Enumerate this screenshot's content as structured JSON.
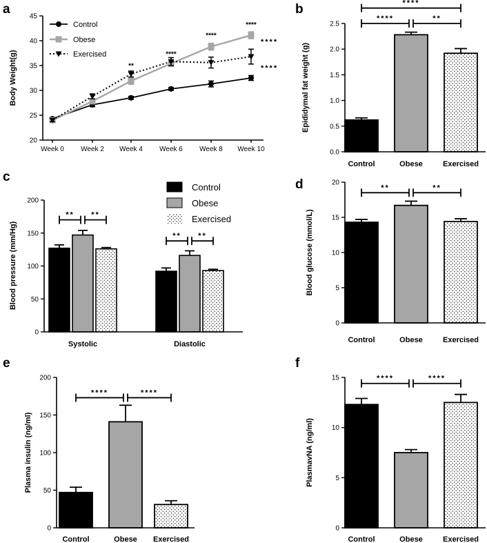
{
  "colors": {
    "control": "#000000",
    "obese": "#a6a6a6",
    "exercised": "#ffffff",
    "axis": "#000000"
  },
  "chart_data": [
    {
      "id": "a",
      "panel_label": "a",
      "type": "line",
      "ylabel": "Body Weight(g)",
      "ylim": [
        20,
        45
      ],
      "yticks": [
        20,
        25,
        30,
        35,
        40,
        45
      ],
      "x": [
        "Week 0",
        "Week 2",
        "Week 4",
        "Week 6",
        "Week 8",
        "Week 10"
      ],
      "series": [
        {
          "name": "Control",
          "key": "control",
          "values": [
            24.3,
            27.1,
            28.5,
            30.3,
            31.3,
            32.5
          ],
          "err": [
            0.3,
            0.4,
            0.3,
            0.3,
            0.6,
            0.5
          ]
        },
        {
          "name": "Obese",
          "key": "obese",
          "values": [
            24.0,
            27.8,
            31.9,
            35.4,
            38.8,
            41.1
          ],
          "err": [
            0.3,
            0.5,
            0.7,
            0.6,
            0.7,
            0.7
          ]
        },
        {
          "name": "Exercised",
          "key": "exercised",
          "values": [
            24.0,
            28.8,
            33.3,
            35.8,
            35.6,
            36.8
          ],
          "err": [
            0.3,
            0.5,
            0.6,
            0.8,
            1.1,
            1.5
          ]
        }
      ],
      "annotations": [
        {
          "text": "**",
          "x_index": 2,
          "y": 34.5
        },
        {
          "text": "****",
          "x_index": 3,
          "y": 36.9
        },
        {
          "text": "****",
          "x_index": 4,
          "y": 40.6
        },
        {
          "text": "****",
          "x_index": 5,
          "y": 42.8
        },
        {
          "text": "****",
          "x_index": 5,
          "y": 39.3,
          "side": "right"
        },
        {
          "text": "****",
          "x_index": 5,
          "y": 34.0,
          "side": "right"
        }
      ],
      "legend": {
        "position": "top-left",
        "entries": [
          "Control",
          "Obese",
          "Exercised"
        ]
      }
    },
    {
      "id": "b",
      "panel_label": "b",
      "type": "bar",
      "ylabel": "Epididymal fat weight (g)",
      "ylim": [
        0,
        2.5
      ],
      "yticks": [
        "0.0",
        "0.5",
        "1.0",
        "1.5",
        "2.0",
        "2.5"
      ],
      "categories": [
        "Control",
        "Obese",
        "Exercised"
      ],
      "values": [
        0.62,
        2.28,
        1.92
      ],
      "err": [
        0.04,
        0.05,
        0.09
      ],
      "brackets": [
        {
          "from": 0,
          "to": 1,
          "text": "****",
          "y": 2.5
        },
        {
          "from": 1,
          "to": 2,
          "text": "**",
          "y": 2.5
        },
        {
          "from": 0,
          "to": 2,
          "text": "****",
          "y": 2.8
        }
      ]
    },
    {
      "id": "c",
      "panel_label": "c",
      "type": "grouped-bar",
      "ylabel": "Blood pressure (mm/Hg)",
      "ylim": [
        0,
        200
      ],
      "yticks": [
        0,
        50,
        100,
        150,
        200
      ],
      "groups": [
        "Systolic",
        "Diastolic"
      ],
      "series": [
        {
          "name": "Control",
          "key": "control",
          "values": [
            127,
            92
          ],
          "err": [
            5,
            5
          ]
        },
        {
          "name": "Obese",
          "key": "obese",
          "values": [
            147,
            116
          ],
          "err": [
            7,
            7
          ]
        },
        {
          "name": "Exercised",
          "key": "exercised",
          "values": [
            126,
            93
          ],
          "err": [
            2,
            2
          ]
        }
      ],
      "brackets": [
        {
          "group": 0,
          "from": 0,
          "to": 1,
          "text": "**",
          "y": 170
        },
        {
          "group": 0,
          "from": 1,
          "to": 2,
          "text": "**",
          "y": 170
        },
        {
          "group": 1,
          "from": 0,
          "to": 1,
          "text": "**",
          "y": 138
        },
        {
          "group": 1,
          "from": 1,
          "to": 2,
          "text": "**",
          "y": 138
        }
      ],
      "legend": {
        "position": "top-right",
        "entries": [
          "Control",
          "Obese",
          "Exercised"
        ]
      }
    },
    {
      "id": "d",
      "panel_label": "d",
      "type": "bar",
      "ylabel": "Blood glucose (mmol/L)",
      "ylim": [
        0,
        20
      ],
      "yticks": [
        0,
        5,
        10,
        15,
        20
      ],
      "categories": [
        "Control",
        "Obese",
        "Exercised"
      ],
      "values": [
        14.3,
        16.7,
        14.4
      ],
      "err": [
        0.4,
        0.6,
        0.4
      ],
      "brackets": [
        {
          "from": 0,
          "to": 1,
          "text": "**",
          "y": 18.5
        },
        {
          "from": 1,
          "to": 2,
          "text": "**",
          "y": 18.5
        }
      ]
    },
    {
      "id": "e",
      "panel_label": "e",
      "type": "bar",
      "ylabel": "Plasma insulin (ng/ml)",
      "ylim": [
        0,
        200
      ],
      "yticks": [
        0,
        50,
        100,
        150,
        200
      ],
      "categories": [
        "Control",
        "Obese",
        "Exercised"
      ],
      "values": [
        47,
        141,
        31
      ],
      "err": [
        7,
        22,
        5
      ],
      "brackets": [
        {
          "from": 0,
          "to": 1,
          "text": "****",
          "y": 173
        },
        {
          "from": 1,
          "to": 2,
          "text": "****",
          "y": 173
        }
      ]
    },
    {
      "id": "f",
      "panel_label": "f",
      "type": "bar",
      "ylabel": "PlasmavNA (ng/ml)",
      "ylim": [
        0,
        15
      ],
      "yticks": [
        0,
        5,
        10,
        15
      ],
      "categories": [
        "Control",
        "Obese",
        "Exercised"
      ],
      "values": [
        12.3,
        7.5,
        12.5
      ],
      "err": [
        0.6,
        0.3,
        0.8
      ],
      "brackets": [
        {
          "from": 0,
          "to": 1,
          "text": "****",
          "y": 14.4
        },
        {
          "from": 1,
          "to": 2,
          "text": "****",
          "y": 14.4
        }
      ]
    }
  ]
}
